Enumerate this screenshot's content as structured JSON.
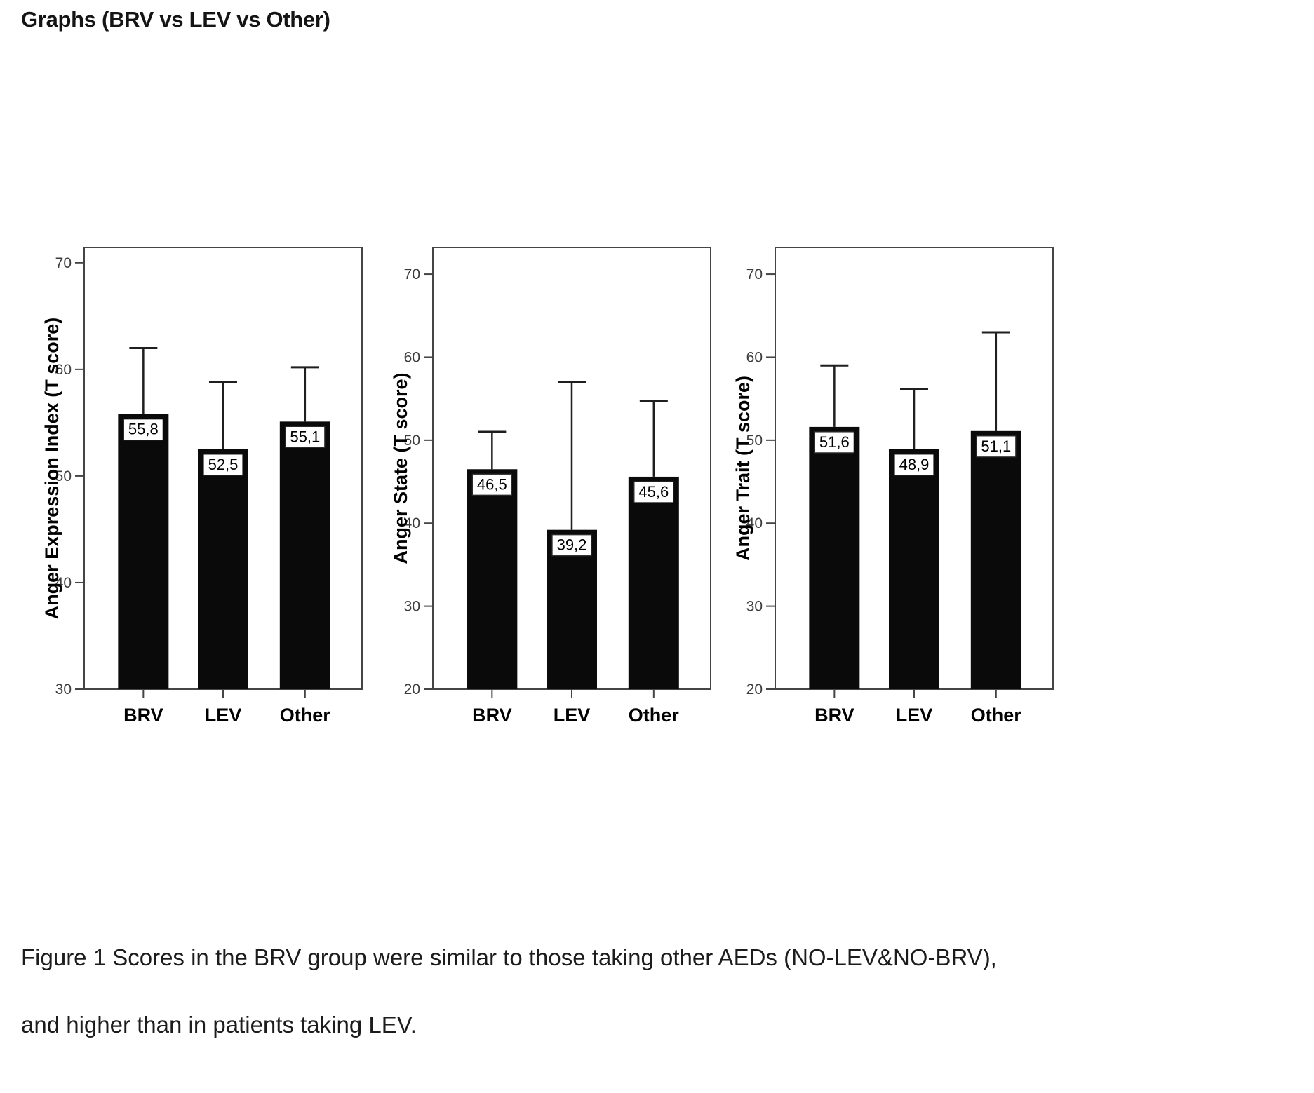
{
  "page": {
    "title": "Graphs (BRV vs LEV vs Other)"
  },
  "caption": {
    "lines": [
      "Figure 1 Scores in the BRV group were similar to those taking other AEDs (NO-LEV&NO-BRV),",
      "and higher than in patients taking LEV."
    ]
  },
  "colors": {
    "bar": "#0a0a0a",
    "frame": "#454545",
    "tick_text": "#3d3d3d",
    "axis_text": "#000000",
    "error_bar": "#1f1f1f",
    "value_box_border": "#2a2a2a",
    "background": "#ffffff"
  },
  "chart_data": [
    {
      "type": "bar",
      "title": "",
      "xlabel": "",
      "ylabel": "Anger Expression Index (T score)",
      "categories": [
        "BRV",
        "LEV",
        "Other"
      ],
      "values": [
        55.8,
        52.5,
        55.1
      ],
      "value_labels": [
        "55,8",
        "52,5",
        "55,1"
      ],
      "error_upper": [
        62.0,
        58.8,
        60.2
      ],
      "yticks": [
        30,
        40,
        50,
        60,
        70
      ],
      "ylim": [
        30,
        71.5
      ],
      "grid": false,
      "legend": "none"
    },
    {
      "type": "bar",
      "title": "",
      "xlabel": "",
      "ylabel": "Anger State (T score)",
      "categories": [
        "BRV",
        "LEV",
        "Other"
      ],
      "values": [
        46.5,
        39.2,
        45.6
      ],
      "value_labels": [
        "46,5",
        "39,2",
        "45,6"
      ],
      "error_upper": [
        51.0,
        57.0,
        54.7
      ],
      "yticks": [
        20,
        30,
        40,
        50,
        60,
        70
      ],
      "ylim": [
        20,
        73.3
      ],
      "grid": false,
      "legend": "none"
    },
    {
      "type": "bar",
      "title": "",
      "xlabel": "",
      "ylabel": "Anger Trait (T score)",
      "categories": [
        "BRV",
        "LEV",
        "Other"
      ],
      "values": [
        51.6,
        48.9,
        51.1
      ],
      "value_labels": [
        "51,6",
        "48,9",
        "51,1"
      ],
      "error_upper": [
        59.0,
        56.2,
        63.0
      ],
      "yticks": [
        20,
        30,
        40,
        50,
        60,
        70
      ],
      "ylim": [
        20,
        73.3
      ],
      "grid": false,
      "legend": "none"
    }
  ]
}
